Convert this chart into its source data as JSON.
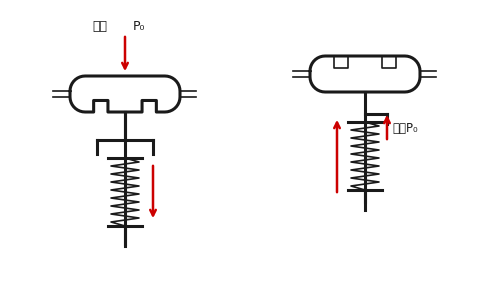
{
  "bg_color": "#ffffff",
  "line_color": "#1a1a1a",
  "arrow_color": "#cc0000",
  "text_color": "#1a1a1a",
  "label_qiyuan": "气源",
  "label_p0": "P₀",
  "label_qiyuan_p0": "气源P₀",
  "figsize": [
    4.99,
    2.84
  ],
  "dpi": 100
}
